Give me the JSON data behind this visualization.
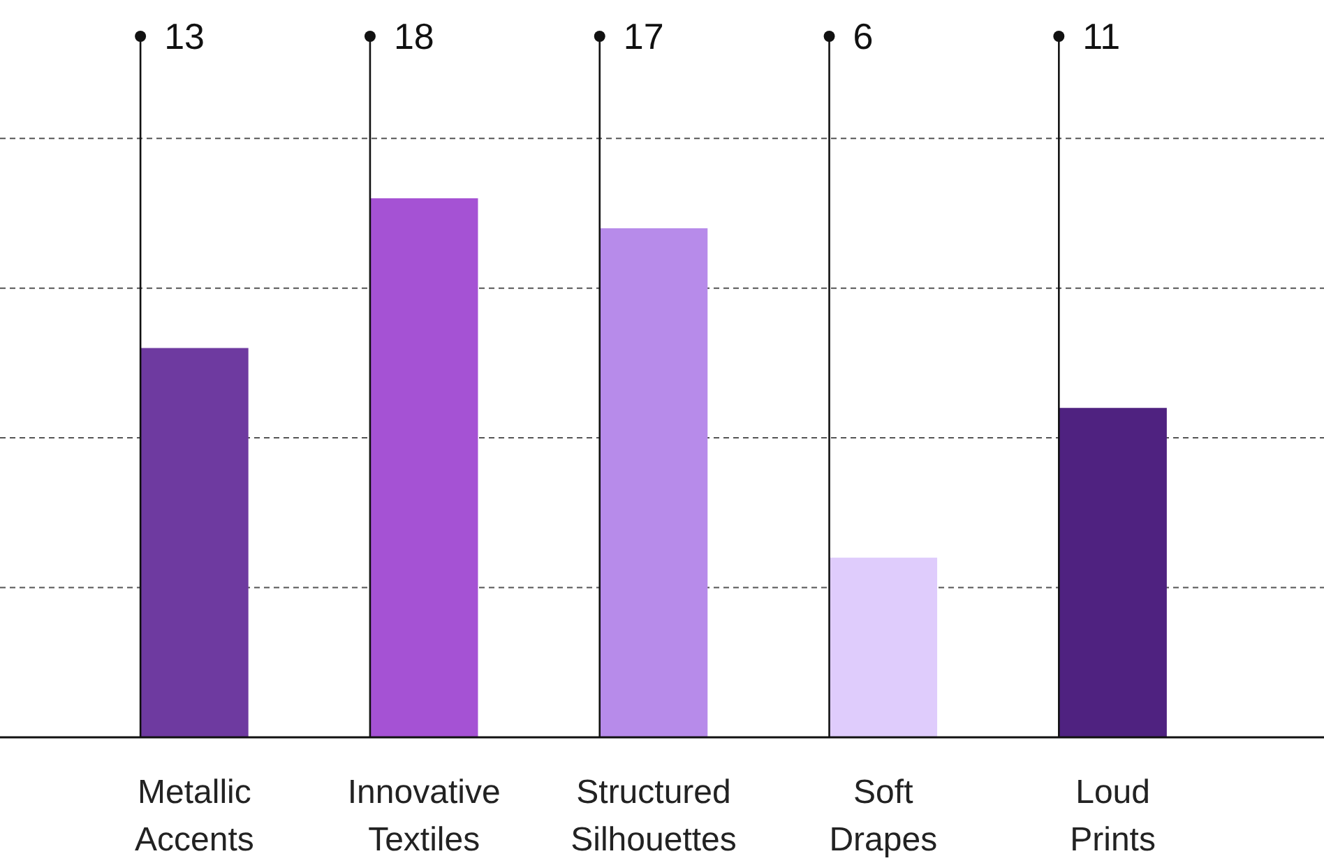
{
  "chart_data": {
    "type": "bar",
    "categories": [
      "Metallic Accents",
      "Innovative Textiles",
      "Structured Silhouettes",
      "Soft Drapes",
      "Loud Prints"
    ],
    "values": [
      13,
      18,
      17,
      6,
      11
    ],
    "colors": [
      "#6e3aa0",
      "#a552d4",
      "#b78bea",
      "#dfccfc",
      "#4f2280"
    ],
    "data_labels": true,
    "grid": "y",
    "line_style": "dashed",
    "tick_labels": "x"
  }
}
